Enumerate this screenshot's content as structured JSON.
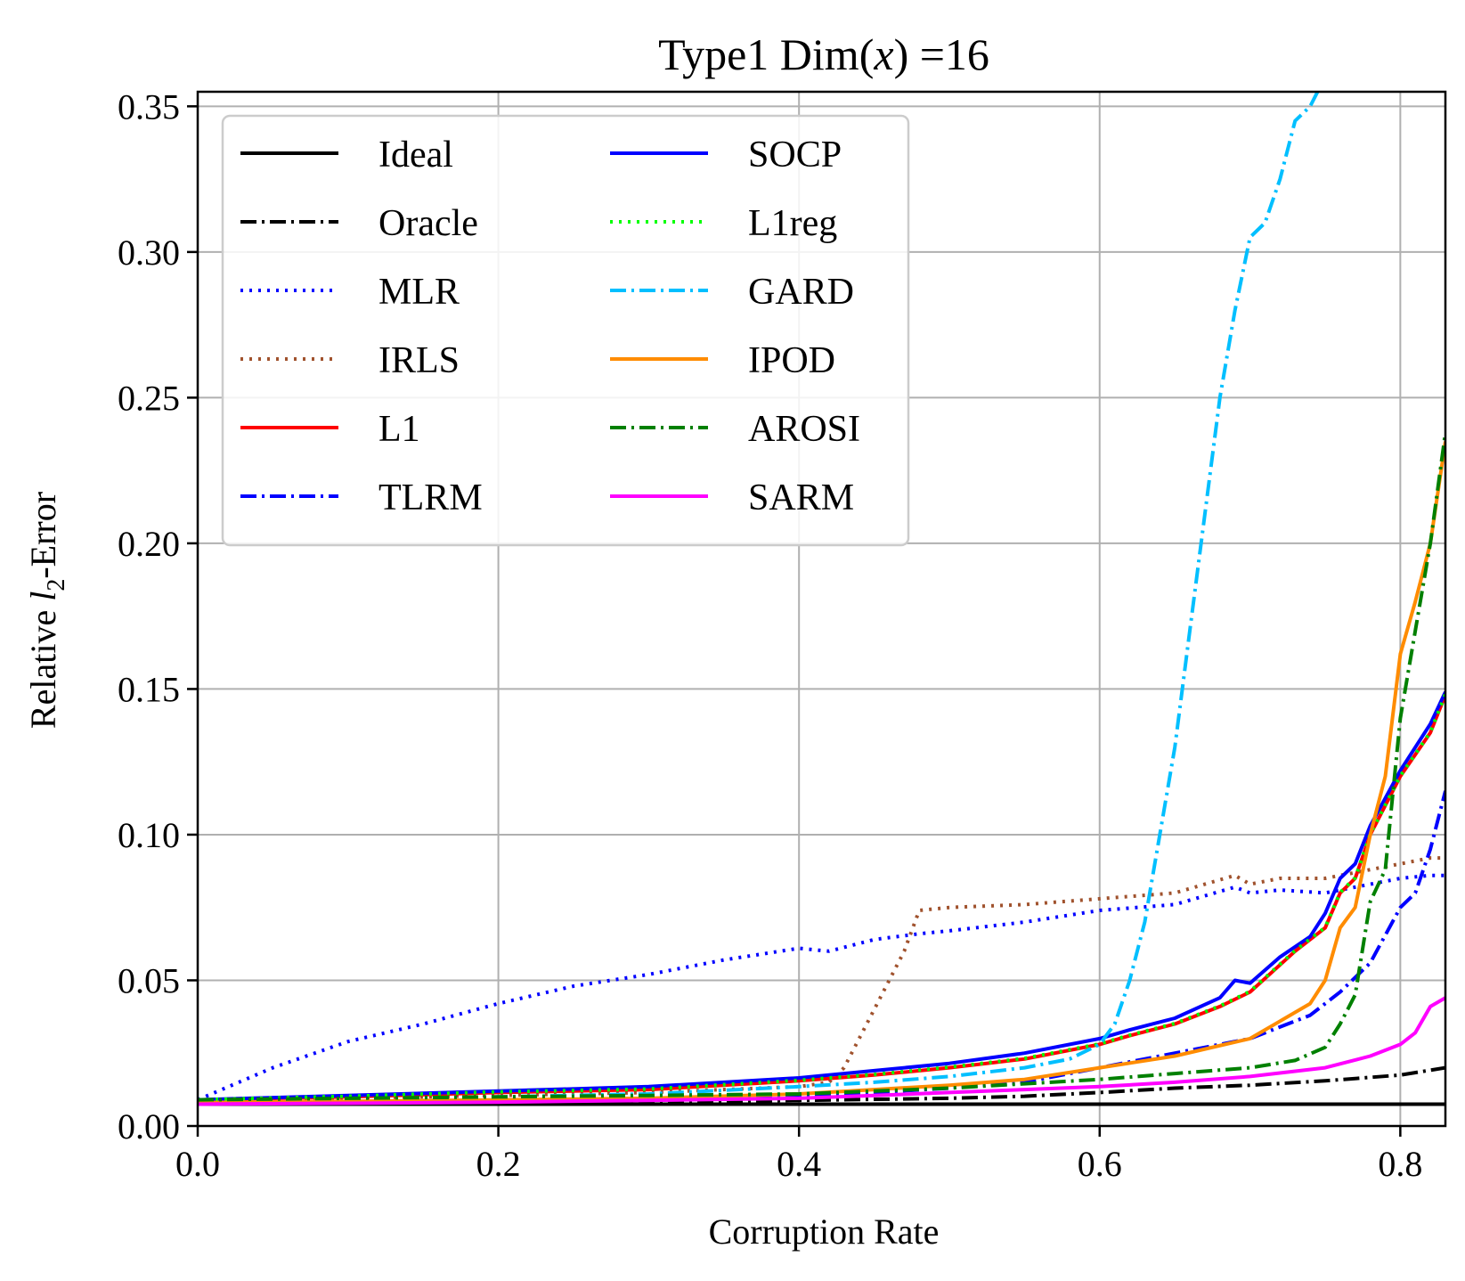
{
  "chart_data": {
    "type": "line",
    "title": {
      "prefix": "Type1  Dim(",
      "var": "x",
      "suffix": ") =16"
    },
    "xlabel": "Corruption Rate",
    "ylabel": {
      "prefix": "Relative ",
      "var": "l",
      "sub": "2",
      "suffix": "-Error"
    },
    "xlim": [
      0,
      0.83
    ],
    "ylim": [
      0,
      0.355
    ],
    "xticks": [
      0.0,
      0.2,
      0.4,
      0.6,
      0.8
    ],
    "xtick_labels": [
      "0.0",
      "0.2",
      "0.4",
      "0.6",
      "0.8"
    ],
    "yticks": [
      0.0,
      0.05,
      0.1,
      0.15,
      0.2,
      0.25,
      0.3,
      0.35
    ],
    "ytick_labels": [
      "0.00",
      "0.05",
      "0.10",
      "0.15",
      "0.20",
      "0.25",
      "0.30",
      "0.35"
    ],
    "grid": true,
    "legend": {
      "position": "top-left",
      "columns": 2
    },
    "series": [
      {
        "name": "Ideal",
        "color": "#000000",
        "dash": "solid",
        "x": [
          0,
          0.83
        ],
        "y": [
          0.0075,
          0.0075
        ]
      },
      {
        "name": "Oracle",
        "color": "#000000",
        "dash": "dashdot",
        "x": [
          0,
          0.1,
          0.2,
          0.3,
          0.4,
          0.5,
          0.55,
          0.6,
          0.65,
          0.7,
          0.75,
          0.8,
          0.83
        ],
        "y": [
          0.0075,
          0.0077,
          0.008,
          0.0083,
          0.0088,
          0.0095,
          0.0102,
          0.0115,
          0.013,
          0.014,
          0.0155,
          0.0175,
          0.02
        ]
      },
      {
        "name": "MLR",
        "color": "#0000ff",
        "dash": "dotted",
        "x": [
          0,
          0.05,
          0.1,
          0.15,
          0.2,
          0.25,
          0.3,
          0.35,
          0.4,
          0.42,
          0.45,
          0.48,
          0.5,
          0.55,
          0.6,
          0.65,
          0.69,
          0.7,
          0.72,
          0.75,
          0.78,
          0.8,
          0.82,
          0.83
        ],
        "y": [
          0.009,
          0.02,
          0.029,
          0.035,
          0.042,
          0.048,
          0.052,
          0.057,
          0.061,
          0.06,
          0.064,
          0.066,
          0.067,
          0.07,
          0.074,
          0.076,
          0.082,
          0.08,
          0.081,
          0.08,
          0.083,
          0.085,
          0.086,
          0.086
        ]
      },
      {
        "name": "IRLS",
        "color": "#a0522d",
        "dash": "dotted",
        "x": [
          0,
          0.1,
          0.2,
          0.3,
          0.4,
          0.42,
          0.43,
          0.45,
          0.47,
          0.48,
          0.5,
          0.55,
          0.6,
          0.65,
          0.69,
          0.7,
          0.72,
          0.75,
          0.78,
          0.8,
          0.82,
          0.83
        ],
        "y": [
          0.0085,
          0.0095,
          0.0105,
          0.0115,
          0.0135,
          0.015,
          0.02,
          0.04,
          0.06,
          0.074,
          0.075,
          0.076,
          0.078,
          0.08,
          0.086,
          0.083,
          0.085,
          0.085,
          0.088,
          0.09,
          0.092,
          0.092
        ]
      },
      {
        "name": "L1",
        "color": "#ff0000",
        "dash": "solid",
        "x": [
          0,
          0.1,
          0.2,
          0.3,
          0.4,
          0.45,
          0.5,
          0.55,
          0.6,
          0.62,
          0.65,
          0.68,
          0.7,
          0.73,
          0.75,
          0.76,
          0.77,
          0.78,
          0.8,
          0.82,
          0.83
        ],
        "y": [
          0.009,
          0.01,
          0.0115,
          0.0125,
          0.0155,
          0.0175,
          0.02,
          0.023,
          0.028,
          0.031,
          0.035,
          0.041,
          0.046,
          0.06,
          0.068,
          0.08,
          0.085,
          0.1,
          0.12,
          0.135,
          0.148
        ]
      },
      {
        "name": "TLRM",
        "color": "#0000ff",
        "dash": "dashdot",
        "x": [
          0,
          0.1,
          0.2,
          0.3,
          0.4,
          0.45,
          0.5,
          0.55,
          0.6,
          0.65,
          0.7,
          0.74,
          0.76,
          0.78,
          0.8,
          0.81,
          0.82,
          0.83
        ],
        "y": [
          0.008,
          0.0085,
          0.009,
          0.0095,
          0.0105,
          0.0115,
          0.013,
          0.015,
          0.02,
          0.025,
          0.03,
          0.038,
          0.046,
          0.056,
          0.075,
          0.08,
          0.095,
          0.115
        ]
      },
      {
        "name": "SOCP",
        "color": "#0000ff",
        "dash": "solid",
        "x": [
          0,
          0.1,
          0.2,
          0.3,
          0.4,
          0.45,
          0.5,
          0.55,
          0.6,
          0.62,
          0.65,
          0.68,
          0.69,
          0.7,
          0.72,
          0.74,
          0.75,
          0.76,
          0.77,
          0.78,
          0.8,
          0.82,
          0.83
        ],
        "y": [
          0.009,
          0.0105,
          0.012,
          0.0135,
          0.0165,
          0.019,
          0.0215,
          0.025,
          0.03,
          0.033,
          0.037,
          0.044,
          0.05,
          0.049,
          0.058,
          0.065,
          0.073,
          0.085,
          0.09,
          0.103,
          0.122,
          0.138,
          0.149
        ]
      },
      {
        "name": "L1reg",
        "color": "#00ff00",
        "dash": "dotted",
        "x": [
          0,
          0.1,
          0.2,
          0.3,
          0.4,
          0.45,
          0.5,
          0.55,
          0.6,
          0.62,
          0.65,
          0.68,
          0.7,
          0.73,
          0.75,
          0.76,
          0.77,
          0.78,
          0.8,
          0.82,
          0.83
        ],
        "y": [
          0.009,
          0.0102,
          0.0117,
          0.0127,
          0.0157,
          0.0177,
          0.0202,
          0.0232,
          0.0282,
          0.0312,
          0.0352,
          0.0412,
          0.0462,
          0.0602,
          0.0682,
          0.0802,
          0.0852,
          0.1002,
          0.1202,
          0.1352,
          0.1482
        ]
      },
      {
        "name": "GARD",
        "color": "#00bfff",
        "dash": "dashdot",
        "x": [
          0,
          0.1,
          0.2,
          0.3,
          0.4,
          0.45,
          0.5,
          0.55,
          0.58,
          0.6,
          0.61,
          0.62,
          0.63,
          0.64,
          0.65,
          0.66,
          0.67,
          0.68,
          0.69,
          0.7,
          0.71,
          0.72,
          0.73,
          0.74,
          0.745
        ],
        "y": [
          0.008,
          0.009,
          0.01,
          0.011,
          0.0135,
          0.015,
          0.017,
          0.02,
          0.023,
          0.028,
          0.035,
          0.05,
          0.07,
          0.1,
          0.13,
          0.17,
          0.21,
          0.25,
          0.28,
          0.305,
          0.31,
          0.325,
          0.345,
          0.35,
          0.355
        ]
      },
      {
        "name": "IPOD",
        "color": "#ff8c00",
        "dash": "solid",
        "x": [
          0,
          0.1,
          0.2,
          0.3,
          0.4,
          0.45,
          0.5,
          0.55,
          0.6,
          0.65,
          0.7,
          0.72,
          0.74,
          0.75,
          0.76,
          0.77,
          0.78,
          0.79,
          0.8,
          0.81,
          0.82,
          0.83
        ],
        "y": [
          0.008,
          0.0085,
          0.009,
          0.0095,
          0.011,
          0.0125,
          0.014,
          0.016,
          0.02,
          0.024,
          0.03,
          0.036,
          0.042,
          0.05,
          0.068,
          0.075,
          0.1,
          0.12,
          0.162,
          0.18,
          0.2,
          0.235
        ]
      },
      {
        "name": "AROSI",
        "color": "#008000",
        "dash": "dashdot",
        "x": [
          0,
          0.1,
          0.2,
          0.3,
          0.4,
          0.45,
          0.5,
          0.55,
          0.6,
          0.65,
          0.7,
          0.73,
          0.75,
          0.76,
          0.77,
          0.78,
          0.79,
          0.8,
          0.81,
          0.82,
          0.83
        ],
        "y": [
          0.009,
          0.0095,
          0.01,
          0.0105,
          0.011,
          0.012,
          0.013,
          0.0145,
          0.016,
          0.018,
          0.02,
          0.0225,
          0.027,
          0.035,
          0.045,
          0.077,
          0.088,
          0.14,
          0.17,
          0.2,
          0.238
        ]
      },
      {
        "name": "SARM",
        "color": "#ff00ff",
        "dash": "solid",
        "x": [
          0,
          0.1,
          0.2,
          0.3,
          0.4,
          0.45,
          0.5,
          0.55,
          0.6,
          0.65,
          0.7,
          0.75,
          0.78,
          0.8,
          0.81,
          0.82,
          0.83
        ],
        "y": [
          0.0075,
          0.0078,
          0.0082,
          0.0088,
          0.0095,
          0.0105,
          0.0115,
          0.0125,
          0.0135,
          0.015,
          0.017,
          0.02,
          0.024,
          0.028,
          0.032,
          0.041,
          0.044
        ]
      }
    ]
  }
}
